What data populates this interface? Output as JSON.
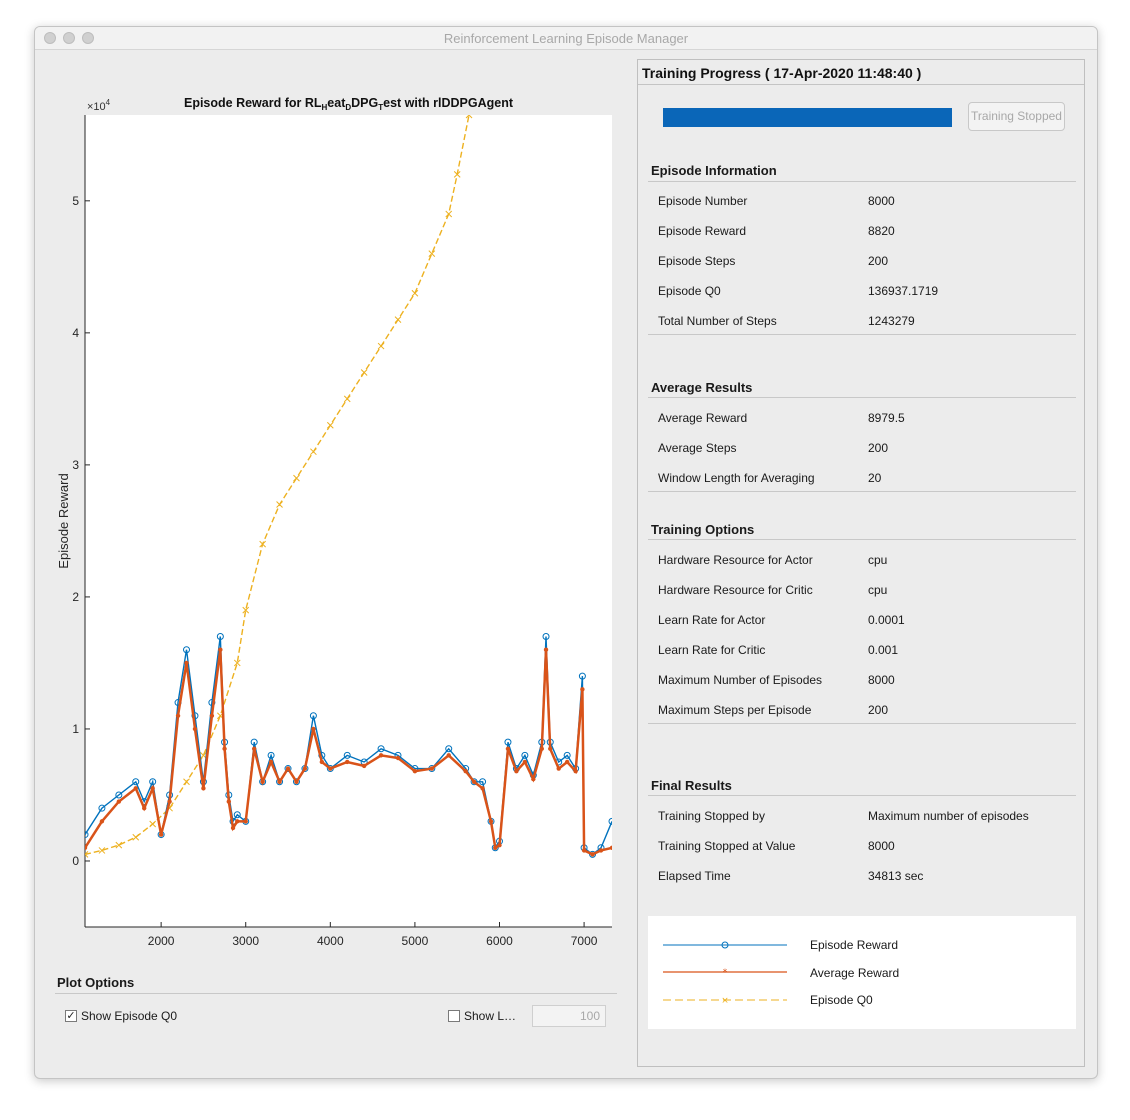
{
  "window": {
    "title": "Reinforcement Learning Episode Manager"
  },
  "chart_data": {
    "type": "line",
    "title_parts": [
      "Episode  Reward  for  RL",
      "H",
      "eat",
      "D",
      "DPG",
      "T",
      "est  with  rlDDPGAgent"
    ],
    "xlabel": "Episode Number",
    "ylabel": "Episode Reward",
    "y_multiplier": "×10",
    "y_multiplier_exp": "4",
    "xlim": [
      1100,
      7330
    ],
    "ylim": [
      -0.5,
      5.65
    ],
    "x_ticks": [
      2000,
      3000,
      4000,
      5000,
      6000,
      7000
    ],
    "x_tick_labels": [
      "2000",
      "3000",
      "4000",
      "5000",
      "6000",
      "7000"
    ],
    "y_ticks": [
      0,
      1,
      2,
      3,
      4,
      5
    ],
    "y_tick_labels": [
      "0",
      "1",
      "2",
      "3",
      "4",
      "5"
    ],
    "grid": false,
    "series": [
      {
        "name": "Episode Reward",
        "color": "#0072bd",
        "marker": "circle",
        "x": [
          1100,
          1300,
          1500,
          1700,
          1800,
          1900,
          2000,
          2100,
          2200,
          2300,
          2400,
          2500,
          2600,
          2700,
          2750,
          2800,
          2850,
          2900,
          3000,
          3100,
          3200,
          3300,
          3400,
          3500,
          3600,
          3700,
          3800,
          3900,
          4000,
          4200,
          4400,
          4600,
          4800,
          5000,
          5200,
          5400,
          5600,
          5700,
          5800,
          5900,
          5950,
          6000,
          6100,
          6200,
          6300,
          6400,
          6500,
          6550,
          6600,
          6700,
          6800,
          6900,
          6980,
          7000,
          7100,
          7200,
          7330
        ],
        "values": [
          0.2,
          0.4,
          0.5,
          0.6,
          0.45,
          0.6,
          0.2,
          0.5,
          1.2,
          1.6,
          1.1,
          0.6,
          1.2,
          1.7,
          0.9,
          0.5,
          0.3,
          0.35,
          0.3,
          0.9,
          0.6,
          0.8,
          0.6,
          0.7,
          0.6,
          0.7,
          1.1,
          0.8,
          0.7,
          0.8,
          0.75,
          0.85,
          0.8,
          0.7,
          0.7,
          0.85,
          0.7,
          0.6,
          0.6,
          0.3,
          0.1,
          0.15,
          0.9,
          0.7,
          0.8,
          0.65,
          0.9,
          1.7,
          0.9,
          0.75,
          0.8,
          0.7,
          1.4,
          0.1,
          0.05,
          0.1,
          0.3
        ]
      },
      {
        "name": "Average Reward",
        "color": "#d95319",
        "marker": "star",
        "x": [
          1100,
          1300,
          1500,
          1700,
          1800,
          1900,
          2000,
          2100,
          2200,
          2300,
          2400,
          2500,
          2600,
          2700,
          2750,
          2800,
          2850,
          2900,
          3000,
          3100,
          3200,
          3300,
          3400,
          3500,
          3600,
          3700,
          3800,
          3900,
          4000,
          4200,
          4400,
          4600,
          4800,
          5000,
          5200,
          5400,
          5600,
          5700,
          5800,
          5900,
          5950,
          6000,
          6100,
          6200,
          6300,
          6400,
          6500,
          6550,
          6600,
          6700,
          6800,
          6900,
          6980,
          7000,
          7100,
          7200,
          7330
        ],
        "values": [
          0.1,
          0.3,
          0.45,
          0.55,
          0.4,
          0.55,
          0.2,
          0.45,
          1.1,
          1.5,
          1.0,
          0.55,
          1.1,
          1.6,
          0.85,
          0.45,
          0.25,
          0.3,
          0.3,
          0.85,
          0.6,
          0.75,
          0.6,
          0.7,
          0.6,
          0.7,
          1.0,
          0.75,
          0.7,
          0.75,
          0.72,
          0.8,
          0.78,
          0.68,
          0.7,
          0.8,
          0.68,
          0.6,
          0.55,
          0.3,
          0.1,
          0.12,
          0.85,
          0.68,
          0.75,
          0.62,
          0.85,
          1.6,
          0.85,
          0.7,
          0.75,
          0.68,
          1.3,
          0.08,
          0.05,
          0.08,
          0.1
        ]
      },
      {
        "name": "Episode Q0",
        "color": "#edb120",
        "marker": "cross",
        "x": [
          1100,
          1300,
          1500,
          1700,
          1900,
          2100,
          2300,
          2500,
          2700,
          2900,
          3000,
          3200,
          3400,
          3600,
          3800,
          4000,
          4200,
          4400,
          4600,
          4800,
          5000,
          5200,
          5400,
          5500,
          5640
        ],
        "values": [
          0.05,
          0.08,
          0.12,
          0.18,
          0.28,
          0.4,
          0.6,
          0.8,
          1.1,
          1.5,
          1.9,
          2.4,
          2.7,
          2.9,
          3.1,
          3.3,
          3.5,
          3.7,
          3.9,
          4.1,
          4.3,
          4.6,
          4.9,
          5.2,
          5.65
        ]
      }
    ]
  },
  "plot_options": {
    "title": "Plot Options",
    "show_q0_label": "Show Episode Q0",
    "show_q0_checked": "✓",
    "show_last_label": "Show L…",
    "last_n_value": "100"
  },
  "progress": {
    "title": "Training Progress ( 17-Apr-2020 11:48:40 )",
    "progress_fraction": 1.0,
    "button_label": "Training Stopped"
  },
  "episode_information": {
    "title": "Episode Information",
    "rows": [
      {
        "label": "Episode Number",
        "value": "8000"
      },
      {
        "label": "Episode Reward",
        "value": "8820"
      },
      {
        "label": "Episode Steps",
        "value": "200"
      },
      {
        "label": "Episode Q0",
        "value": "136937.1719"
      },
      {
        "label": "Total Number of Steps",
        "value": "1243279"
      }
    ]
  },
  "average_results": {
    "title": "Average Results",
    "rows": [
      {
        "label": "Average Reward",
        "value": "8979.5"
      },
      {
        "label": "Average Steps",
        "value": "200"
      },
      {
        "label": "Window Length for Averaging",
        "value": "20"
      }
    ]
  },
  "training_options": {
    "title": "Training Options",
    "rows": [
      {
        "label": "Hardware Resource for Actor",
        "value": "cpu"
      },
      {
        "label": "Hardware Resource for Critic",
        "value": "cpu"
      },
      {
        "label": "Learn Rate for Actor",
        "value": "0.0001"
      },
      {
        "label": "Learn Rate for Critic",
        "value": "0.001"
      },
      {
        "label": "Maximum Number of Episodes",
        "value": "8000"
      },
      {
        "label": "Maximum Steps per Episode",
        "value": "200"
      }
    ]
  },
  "final_results": {
    "title": "Final Results",
    "rows": [
      {
        "label": "Training Stopped by",
        "value": "Maximum number of episodes"
      },
      {
        "label": "Training Stopped at Value",
        "value": "8000"
      },
      {
        "label": "Elapsed Time",
        "value": "34813 sec"
      }
    ]
  },
  "legend": {
    "items": [
      {
        "label": "Episode Reward",
        "color": "#0072bd",
        "style": "solid",
        "marker": "circle"
      },
      {
        "label": "Average Reward",
        "color": "#d95319",
        "style": "solid",
        "marker": "star"
      },
      {
        "label": "Episode Q0",
        "color": "#edb120",
        "style": "dashed",
        "marker": "cross"
      }
    ]
  }
}
